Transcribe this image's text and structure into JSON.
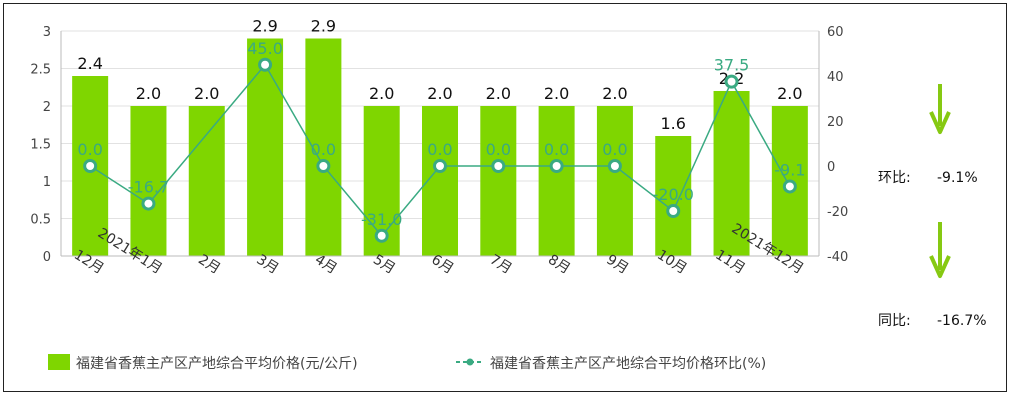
{
  "chart_data": {
    "type": "bar",
    "categories": [
      "12月",
      "2021年1月",
      "2月",
      "3月",
      "4月",
      "5月",
      "6月",
      "7月",
      "8月",
      "9月",
      "10月",
      "11月",
      "2021年12月"
    ],
    "series": [
      {
        "name": "福建省香蕉主产区产地综合平均价格(元/公斤)",
        "type": "bar",
        "axis": "left",
        "values": [
          2.4,
          2.0,
          2.0,
          2.9,
          2.9,
          2.0,
          2.0,
          2.0,
          2.0,
          2.0,
          1.6,
          2.2,
          2.0
        ],
        "labels": [
          "2.4",
          "2.0",
          "2.0",
          "2.9",
          "2.9",
          "2.0",
          "2.0",
          "2.0",
          "2.0",
          "2.0",
          "1.6",
          "2.2",
          "2.0"
        ]
      },
      {
        "name": "福建省香蕉主产区产地综合平均价格环比(%)",
        "type": "line",
        "axis": "right",
        "values": [
          0.0,
          -16.7,
          null,
          45.0,
          0.0,
          -31.0,
          0.0,
          0.0,
          0.0,
          0.0,
          -20.0,
          37.5,
          -9.1
        ],
        "labels": [
          "0.0",
          "-16.7",
          "",
          "45.0",
          "0.0",
          "-31.0",
          "0.0",
          "0.0",
          "0.0",
          "0.0",
          "-20.0",
          "37.5",
          "-9.1"
        ]
      }
    ],
    "y_left": {
      "ylim": [
        0,
        3
      ],
      "ticks": [
        "0",
        "0.5",
        "1",
        "1.5",
        "2",
        "2.5",
        "3"
      ],
      "tick_values": [
        0,
        0.5,
        1,
        1.5,
        2,
        2.5,
        3
      ]
    },
    "y_right": {
      "ylim": [
        -40,
        60
      ],
      "ticks": [
        "-40",
        "-20",
        "0",
        "20",
        "40",
        "60"
      ],
      "tick_values": [
        -40,
        -20,
        0,
        20,
        40,
        60
      ]
    },
    "grid": true,
    "legend": "bottom-left",
    "colors": {
      "bar": "#7fd600",
      "line": "#3aaa82",
      "arrow": "#86c912"
    }
  },
  "side_panel": {
    "mom_label": "环比:",
    "mom_value": "-9.1%",
    "yoy_label": "同比:",
    "yoy_value": "-16.7%"
  }
}
